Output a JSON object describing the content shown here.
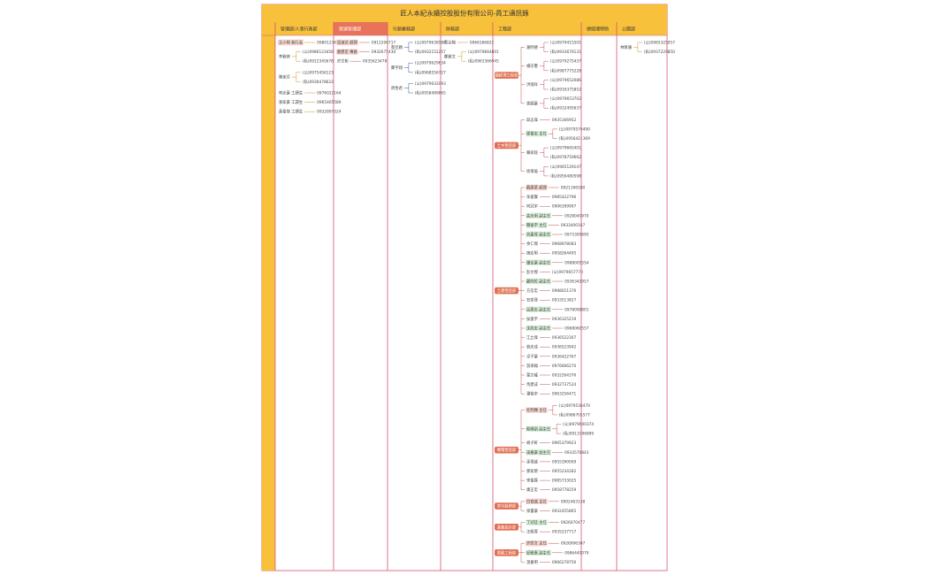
{
  "title": "匠人本紀永續控股股份有限公司-員工通訊錄",
  "columns": [
    {
      "header": "管理部/人事行政部",
      "header_bg": "#f8c13c",
      "header_color": "#333",
      "color": "#c9952a",
      "entries": [
        {
          "name": "王小明 執行長",
          "phones": [
            "0980123456"
          ],
          "hl": "#f8d6d0"
        },
        {
          "name": "李雅婷",
          "phones": [
            "(公)0986123456",
            "(私)0912345678"
          ]
        },
        {
          "name": "陳美玲",
          "phones": [
            "(公)0975456123",
            "(私)0936478622"
          ]
        },
        {
          "name": "林志豪 工讀生",
          "phones": [
            "0976022164"
          ]
        },
        {
          "name": "張家豪 工讀生",
          "phones": [
            "0965465589"
          ]
        },
        {
          "name": "黃俊傑 工讀生",
          "phones": [
            "0932897324"
          ]
        }
      ]
    },
    {
      "header": "營運管理部",
      "header_bg": "#e8735a",
      "header_color": "#fff",
      "color": "#c0504d",
      "entries": [
        {
          "name": "吳淑芬 經理",
          "phones": [
            "0912206717"
          ],
          "hl": "#f8d6d0"
        },
        {
          "name": "劉建宏 專員",
          "phones": [
            "0932675430"
          ],
          "hl": "#f8d6d0"
        },
        {
          "name": "許文彬",
          "phones": [
            "0935623478"
          ]
        }
      ]
    },
    {
      "header": "行銷業務部",
      "header_bg": "#f8c13c",
      "header_color": "#333",
      "color": "#3b5b9a",
      "entries": [
        {
          "name": "蔡佳穎",
          "phones": [
            "(公)0979638580",
            "(私)0932152257"
          ]
        },
        {
          "name": "鄭宇翔",
          "phones": [
            "(公)0979629634",
            "(私)0968556727"
          ]
        },
        {
          "name": "周怡君",
          "phones": [
            "(公)0979632093",
            "(私)0958489865"
          ]
        }
      ]
    },
    {
      "header": "財務部",
      "header_bg": "#f8c13c",
      "header_color": "#333",
      "color": "#c9952a",
      "entries": [
        {
          "name": "蔡宗翰",
          "phones": [
            "0966186822"
          ]
        },
        {
          "name": "鄭雅文",
          "phones": [
            "(公)0979664801",
            "(私)0963366945"
          ]
        }
      ]
    },
    {
      "header": "工程部",
      "header_bg": "#f8c13c",
      "header_color": "#333",
      "color": "#c0504d",
      "groups": [
        {
          "label": "總經理工程部",
          "entries": [
            {
              "name": "謝明德",
              "phones": [
                "(公)0979415501",
                "(私)0933676131"
              ]
            },
            {
              "name": "楊宗憲",
              "phones": [
                "(公)0979275437",
                "(私)0987775228"
              ]
            },
            {
              "name": "洪瑞祥",
              "phones": [
                "(公)0979652086",
                "(私)0916375852"
              ]
            },
            {
              "name": "曾國豪",
              "phones": [
                "(公)0979653702",
                "(私)0932495637"
              ]
            }
          ]
        },
        {
          "label": "土木營造部",
          "entries": [
            {
              "name": "邱志偉",
              "phones": [
                "0935166952"
              ]
            },
            {
              "name": "廖俊宏 主任",
              "phones": [
                "(公)0979576490",
                "(私)0956421369"
              ],
              "hl": "#d9f0d9"
            },
            {
              "name": "賴家銘",
              "phones": [
                "(公)0979665401",
                "(私)0978759662"
              ]
            },
            {
              "name": "徐偉倫",
              "phones": [
                "(公)0965129147",
                "(私)0956480598"
              ]
            }
          ]
        },
        {
          "label": "土建營造部",
          "entries": [
            {
              "name": "蘇建華 經理",
              "phones": [
                "0921166580"
              ],
              "hl": "#f8d6d0"
            },
            {
              "name": "朱俊賢",
              "phones": [
                "0985422796"
              ]
            },
            {
              "name": "何冠宇",
              "phones": [
                "0906399997"
              ]
            },
            {
              "name": "高志明 副主任",
              "phones": [
                "0928040970"
              ],
              "hl": "#d9f0d9"
            },
            {
              "name": "簡振宇 主任",
              "phones": [
                "0933400167"
              ],
              "hl": "#d9f0d9"
            },
            {
              "name": "范嘉偉 副主任",
              "phones": [
                "0973300695"
              ],
              "hl": "#d9f0d9"
            },
            {
              "name": "余仁傑",
              "phones": [
                "0968978083"
              ]
            },
            {
              "name": "施宏明",
              "phones": [
                "0958264495"
              ]
            },
            {
              "name": "鍾佳豪 副主任",
              "phones": [
                "0988001554"
              ],
              "hl": "#d9f0d9"
            },
            {
              "name": "彭文傑",
              "phones": [
                "(公)0979657770"
              ]
            },
            {
              "name": "戴明哲 副主任",
              "phones": [
                "0936342957"
              ],
              "hl": "#d9f0d9"
            },
            {
              "name": "方信宏",
              "phones": [
                "0988021376"
              ]
            },
            {
              "name": "石家瑋",
              "phones": [
                "0933513827"
              ]
            },
            {
              "name": "呂建志 副主任",
              "phones": [
                "0978098801"
              ],
              "hl": "#d9f0d9"
            },
            {
              "name": "侯俊宇",
              "phones": [
                "0936325219"
              ]
            },
            {
              "name": "沈政宏 副主任",
              "phones": [
                "0968060557"
              ],
              "hl": "#d9f0d9"
            },
            {
              "name": "江立偉",
              "phones": [
                "0936522307"
              ]
            },
            {
              "name": "翁志成",
              "phones": [
                "0936523942"
              ]
            },
            {
              "name": "卓子豪",
              "phones": [
                "0936422767"
              ]
            },
            {
              "name": "游承翰",
              "phones": [
                "0976666270"
              ]
            },
            {
              "name": "葉文龍",
              "phones": [
                "0932264376"
              ]
            },
            {
              "name": "馬建成",
              "phones": [
                "0932737524"
              ]
            },
            {
              "name": "潘柏宇",
              "phones": [
                "0963256471"
              ]
            }
          ]
        },
        {
          "label": "機電營造部",
          "entries": [
            {
              "name": "杜明輝 主任",
              "phones": [
                "(公)0979538470",
                "(私)0986705577"
              ],
              "hl": "#f8d6d0"
            },
            {
              "name": "歐陽凱 副主任",
              "phones": [
                "(公)0979600374",
                "(私)0911096899"
              ],
              "hl": "#d9f0d9"
            },
            {
              "name": "胡子軒",
              "phones": [
                "0965379923"
              ]
            },
            {
              "name": "凌嘉豪 副主任",
              "phones": [
                "0933576843"
              ],
              "hl": "#d9f0d9"
            },
            {
              "name": "孫偉誠",
              "phones": [
                "0955390009"
              ]
            },
            {
              "name": "鄧家榮",
              "phones": [
                "0955234282"
              ]
            },
            {
              "name": "宋俊霖",
              "phones": [
                "0985733025"
              ]
            },
            {
              "name": "康正宏",
              "phones": [
                "0958778259"
              ]
            }
          ]
        },
        {
          "label": "室內裝修部",
          "entries": [
            {
              "name": "白育誠 主任",
              "phones": [
                "0902463138"
              ],
              "hl": "#f8d6d0"
            },
            {
              "name": "梁書豪",
              "phones": [
                "0932455865"
              ]
            }
          ]
        },
        {
          "label": "嘉義設計部",
          "entries": [
            {
              "name": "丁冠廷 主任",
              "phones": [
                "0926070477"
              ],
              "hl": "#d9f0d9"
            },
            {
              "name": "汪佩蓉",
              "phones": [
                "0935237717"
              ]
            }
          ]
        },
        {
          "label": "景觀工程部",
          "entries": [
            {
              "name": "許崇文 主任",
              "phones": [
                "0926996387"
              ],
              "hl": "#f8d6d0"
            },
            {
              "name": "紀雅惠 副主任",
              "phones": [
                "0986440079"
              ],
              "hl": "#d9f0d9"
            },
            {
              "name": "溫嘉明",
              "phones": [
                "0966278756"
              ]
            }
          ]
        }
      ]
    },
    {
      "header": "總經理特助",
      "header_bg": "#f8c13c",
      "header_color": "#333",
      "color": "#c9952a",
      "entries": []
    },
    {
      "header": "公關部",
      "header_bg": "#f8c13c",
      "header_color": "#333",
      "color": "#c9952a",
      "entries": [
        {
          "name": "林佩珊",
          "phones": [
            "(公)0965325057",
            "(私)0937229850"
          ]
        }
      ]
    }
  ]
}
